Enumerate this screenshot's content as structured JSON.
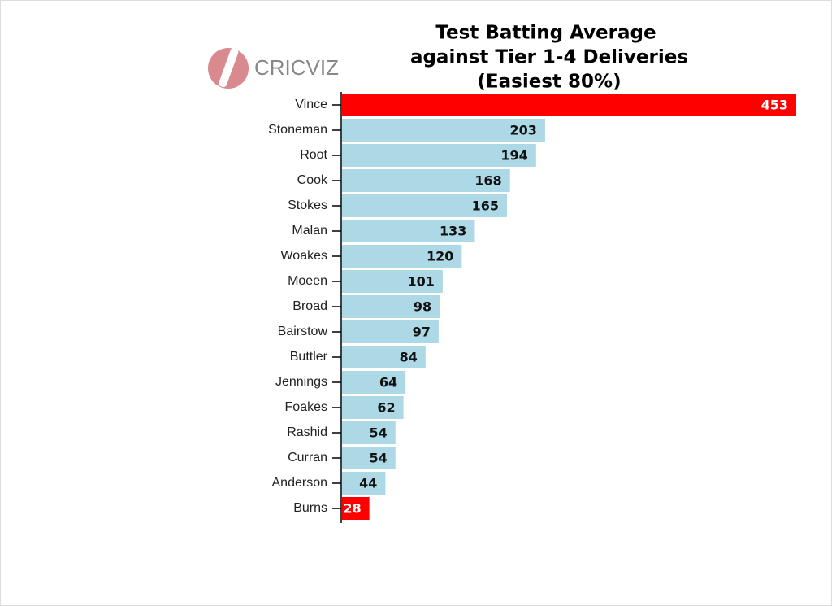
{
  "chart_data": {
    "type": "hbar",
    "title": [
      "Test Batting Average",
      "against Tier 1-4 Deliveries",
      "(Easiest 80%)"
    ],
    "logo": "CRICVIZ",
    "categories": [
      "Vince",
      "Stoneman",
      "Root",
      "Cook",
      "Stokes",
      "Malan",
      "Woakes",
      "Moeen",
      "Broad",
      "Bairstow",
      "Buttler",
      "Jennings",
      "Foakes",
      "Rashid",
      "Curran",
      "Anderson",
      "Burns"
    ],
    "values": [
      453,
      203,
      194,
      168,
      165,
      133,
      120,
      101,
      98,
      97,
      84,
      64,
      62,
      54,
      54,
      44,
      28
    ],
    "colors": [
      "#ff0000",
      "#add8e6",
      "#add8e6",
      "#add8e6",
      "#add8e6",
      "#add8e6",
      "#add8e6",
      "#add8e6",
      "#add8e6",
      "#add8e6",
      "#add8e6",
      "#add8e6",
      "#add8e6",
      "#add8e6",
      "#add8e6",
      "#add8e6",
      "#ff0000"
    ]
  }
}
